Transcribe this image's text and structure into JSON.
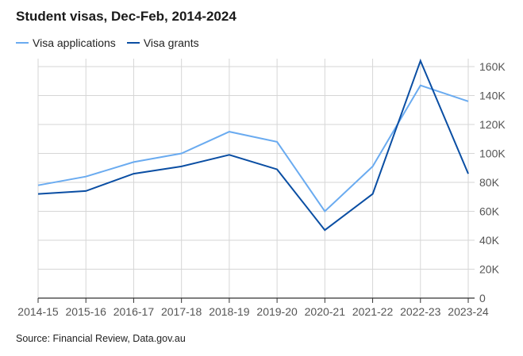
{
  "title": "Student visas, Dec-Feb, 2014-2024",
  "source": "Source: Financial Review, Data.gov.au",
  "colors": {
    "applications": "#6aabf0",
    "grants": "#0a4ea3",
    "grid": "#d6d6d6",
    "axis": "#333333",
    "tick_text": "#555555"
  },
  "chart_data": {
    "type": "line",
    "title": "Student visas, Dec-Feb, 2014-2024",
    "categories": [
      "2014-15",
      "2015-16",
      "2016-17",
      "2017-18",
      "2018-19",
      "2019-20",
      "2020-21",
      "2021-22",
      "2022-23",
      "2023-24"
    ],
    "series": [
      {
        "name": "Visa applications",
        "values": [
          78000,
          84000,
          94000,
          100000,
          115000,
          108000,
          60000,
          91000,
          147000,
          136000
        ]
      },
      {
        "name": "Visa grants",
        "values": [
          72000,
          74000,
          86000,
          91000,
          99000,
          89000,
          47000,
          72000,
          164000,
          86000
        ]
      }
    ],
    "y_ticks": [
      {
        "value": 0,
        "label": "0"
      },
      {
        "value": 20000,
        "label": "20K"
      },
      {
        "value": 40000,
        "label": "40K"
      },
      {
        "value": 60000,
        "label": "60K"
      },
      {
        "value": 80000,
        "label": "80K"
      },
      {
        "value": 100000,
        "label": "100K"
      },
      {
        "value": 120000,
        "label": "120K"
      },
      {
        "value": 140000,
        "label": "140K"
      },
      {
        "value": 160000,
        "label": "160K"
      }
    ],
    "ylim": [
      0,
      160000
    ],
    "y_axis_side": "right",
    "grid": true,
    "legend": "top-left"
  }
}
